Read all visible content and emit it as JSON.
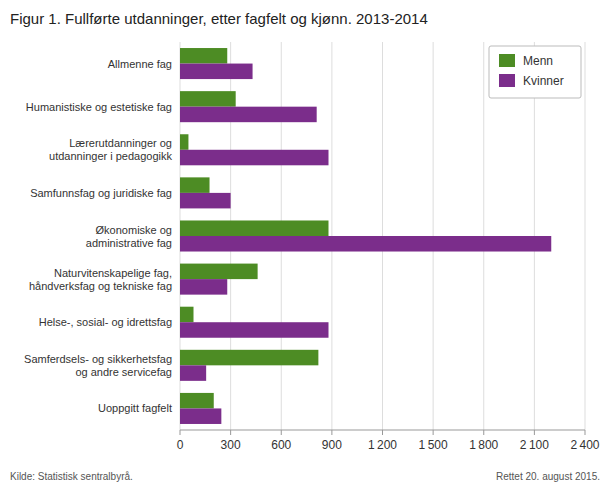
{
  "chart_data": {
    "type": "bar",
    "orientation": "horizontal",
    "title": "Figur 1. Fullførte utdanninger, etter fagfelt og kjønn. 2013-2014",
    "categories": [
      "Allmenne fag",
      "Humanistiske og estetiske fag",
      "Lærerutdanninger og\nutdanninger i pedagogikk",
      "Samfunnsfag og juridiske fag",
      "Økonomiske og\nadministrative fag",
      "Naturvitenskapelige fag,\nhåndverksfag og tekniske fag",
      "Helse-, sosial- og idrettsfag",
      "Samferdsels- og sikkerhetsfag\nog andre servicefag",
      "Uoppgitt fagfelt"
    ],
    "series": [
      {
        "name": "Menn",
        "color": "#4d8c24",
        "values": [
          280,
          330,
          50,
          175,
          880,
          460,
          80,
          820,
          200
        ]
      },
      {
        "name": "Kvinner",
        "color": "#7b2d8b",
        "values": [
          430,
          810,
          880,
          300,
          2200,
          280,
          880,
          155,
          245
        ]
      }
    ],
    "xlim": [
      0,
      2400
    ],
    "xticks": [
      0,
      300,
      600,
      900,
      {
        "value": 1200,
        "label": "1 200"
      },
      {
        "value": 1500,
        "label": "1 500"
      },
      {
        "value": 1800,
        "label": "1 800"
      },
      {
        "value": 2100,
        "label": "2 100"
      },
      {
        "value": 2400,
        "label": "2 400"
      }
    ],
    "grid": true,
    "legend": "upper right",
    "annotations": [
      "Kilde: Statistisk sentralbyrå.",
      "Rettet 20. august 2015."
    ]
  }
}
